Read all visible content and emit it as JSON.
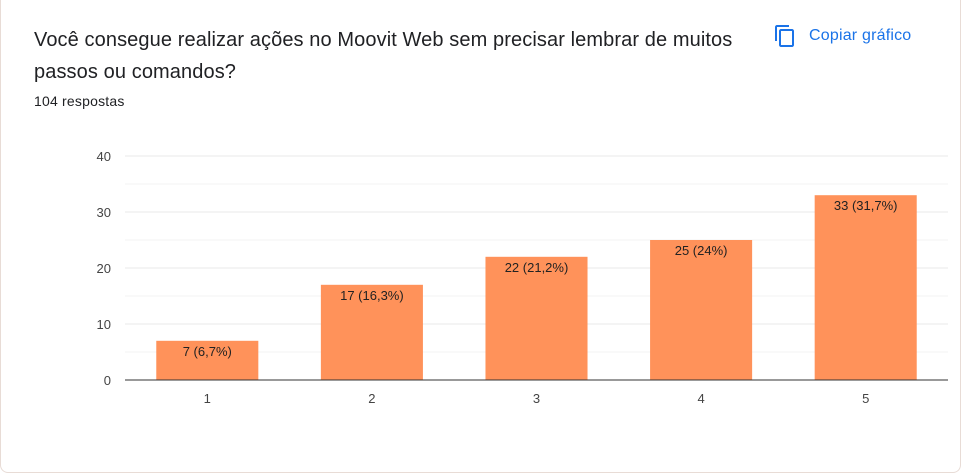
{
  "question": "Você consegue realizar ações no Moovit Web sem precisar lembrar de muitos passos ou comandos?",
  "response_count": "104 respostas",
  "copy_button": {
    "label": "Copiar gráfico",
    "icon": "copy-icon"
  },
  "colors": {
    "bar": "#ff925a",
    "accent": "#1a73e8"
  },
  "chart_data": {
    "type": "bar",
    "title": "",
    "xlabel": "",
    "ylabel": "",
    "categories": [
      "1",
      "2",
      "3",
      "4",
      "5"
    ],
    "values": [
      7,
      17,
      22,
      25,
      33
    ],
    "data_labels": [
      "7 (6,7%)",
      "17 (16,3%)",
      "22 (21,2%)",
      "25 (24%)",
      "33 (31,7%)"
    ],
    "ylim": [
      0,
      40
    ],
    "yticks": [
      0,
      10,
      20,
      30,
      40
    ],
    "grid": true,
    "legend": "none"
  }
}
